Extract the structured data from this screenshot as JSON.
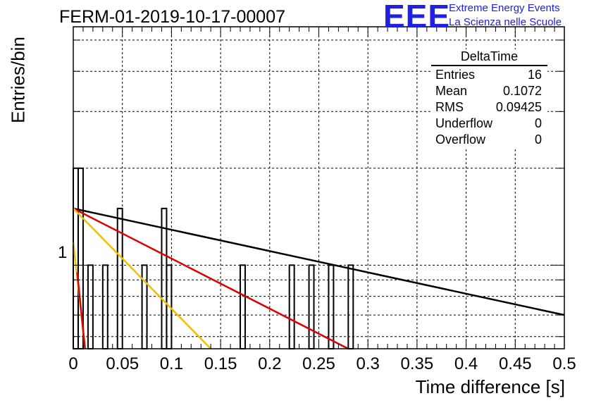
{
  "header": {
    "title": "FERM-01-2019-10-17-00007",
    "logo_letters": "EEE",
    "logo_line1": "Extreme Energy Events",
    "logo_line2": "La Scienza nelle Scuole"
  },
  "stats": {
    "name": "DeltaTime",
    "rows": [
      {
        "label": "Entries",
        "value": "16"
      },
      {
        "label": "Mean",
        "value": "0.1072"
      },
      {
        "label": "RMS",
        "value": "0.09425"
      },
      {
        "label": "Underflow",
        "value": "0"
      },
      {
        "label": "Overflow",
        "value": "0"
      }
    ]
  },
  "chart_data": {
    "type": "bar",
    "title": "FERM-01-2019-10-17-00007",
    "xlabel": "Time difference [s]",
    "ylabel": "Entries/bin",
    "xlim": [
      0,
      0.5
    ],
    "ylim": [
      0.55,
      5.5
    ],
    "y_log_scale": true,
    "grid": true,
    "bin_width": 0.005,
    "x_ticks": [
      "0",
      "0.05",
      "0.1",
      "0.15",
      "0.2",
      "0.25",
      "0.3",
      "0.35",
      "0.4",
      "0.45",
      "0.5"
    ],
    "y_ticks": [
      "1"
    ],
    "bins": [
      {
        "x": 0.0,
        "count": 2
      },
      {
        "x": 0.005,
        "count": 2
      },
      {
        "x": 0.015,
        "count": 1
      },
      {
        "x": 0.03,
        "count": 1
      },
      {
        "x": 0.045,
        "count": 1.5
      },
      {
        "x": 0.07,
        "count": 1
      },
      {
        "x": 0.09,
        "count": 1.5
      },
      {
        "x": 0.095,
        "count": 1
      },
      {
        "x": 0.17,
        "count": 1
      },
      {
        "x": 0.22,
        "count": 1
      },
      {
        "x": 0.24,
        "count": 1
      },
      {
        "x": 0.26,
        "count": 1
      },
      {
        "x": 0.28,
        "count": 1
      }
    ],
    "fit_lines": [
      {
        "color": "#000000",
        "points": [
          [
            0,
            1.5
          ],
          [
            0.5,
            0.7
          ]
        ]
      },
      {
        "color": "#dd0000",
        "points": [
          [
            0,
            1.5
          ],
          [
            0.28,
            0.55
          ]
        ]
      },
      {
        "color": "#f0c000",
        "points": [
          [
            0,
            1.5
          ],
          [
            0.14,
            0.55
          ]
        ]
      },
      {
        "color": "#f0c000",
        "points": [
          [
            0,
            1.18
          ],
          [
            0.012,
            0.55
          ]
        ]
      },
      {
        "color": "#dd0000",
        "points": [
          [
            0.004,
            0.95
          ],
          [
            0.012,
            0.55
          ]
        ]
      }
    ]
  }
}
